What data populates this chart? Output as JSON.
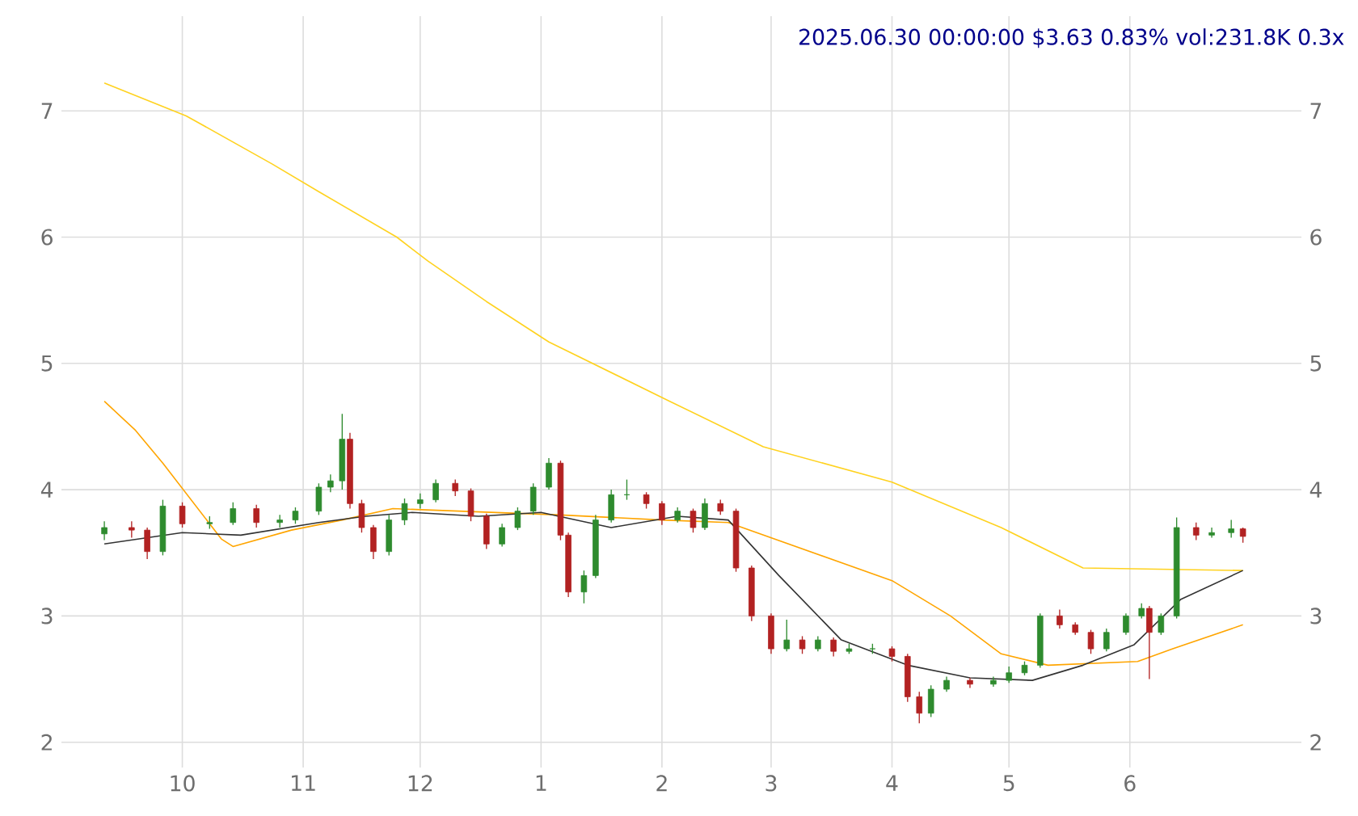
{
  "chart_data": {
    "type": "candlestick",
    "title": "2025.06.30 00:00:00 $3.63 0.83% vol:231.8K 0.3x",
    "x": [
      "2024-09-11",
      "2024-09-18",
      "2024-09-22",
      "2024-09-26",
      "2024-10-01",
      "2024-10-08",
      "2024-10-14",
      "2024-10-20",
      "2024-10-26",
      "2024-10-30",
      "2024-11-05",
      "2024-11-08",
      "2024-11-11",
      "2024-11-13",
      "2024-11-16",
      "2024-11-19",
      "2024-11-23",
      "2024-11-27",
      "2024-12-01",
      "2024-12-05",
      "2024-12-10",
      "2024-12-14",
      "2024-12-18",
      "2024-12-22",
      "2024-12-26",
      "2024-12-30",
      "2025-01-03",
      "2025-01-06",
      "2025-01-08",
      "2025-01-12",
      "2025-01-15",
      "2025-01-19",
      "2025-01-23",
      "2025-01-28",
      "2025-02-01",
      "2025-02-05",
      "2025-02-09",
      "2025-02-12",
      "2025-02-16",
      "2025-02-20",
      "2025-02-24",
      "2025-03-01",
      "2025-03-05",
      "2025-03-09",
      "2025-03-13",
      "2025-03-17",
      "2025-03-21",
      "2025-03-27",
      "2025-04-01",
      "2025-04-05",
      "2025-04-08",
      "2025-04-11",
      "2025-04-15",
      "2025-04-21",
      "2025-04-27",
      "2025-05-01",
      "2025-05-05",
      "2025-05-09",
      "2025-05-14",
      "2025-05-18",
      "2025-05-22",
      "2025-05-26",
      "2025-05-31",
      "2025-06-04",
      "2025-06-06",
      "2025-06-09",
      "2025-06-13",
      "2025-06-18",
      "2025-06-22",
      "2025-06-27",
      "2025-06-30"
    ],
    "ohlc": [
      [
        3.65,
        3.75,
        3.6,
        3.7
      ],
      [
        3.7,
        3.75,
        3.62,
        3.68
      ],
      [
        3.68,
        3.7,
        3.45,
        3.51
      ],
      [
        3.51,
        3.92,
        3.48,
        3.87
      ],
      [
        3.87,
        3.9,
        3.7,
        3.73
      ],
      [
        3.73,
        3.79,
        3.69,
        3.74
      ],
      [
        3.74,
        3.9,
        3.72,
        3.85
      ],
      [
        3.85,
        3.88,
        3.7,
        3.74
      ],
      [
        3.74,
        3.8,
        3.7,
        3.76
      ],
      [
        3.76,
        3.86,
        3.73,
        3.83
      ],
      [
        3.83,
        4.05,
        3.8,
        4.02
      ],
      [
        4.02,
        4.12,
        3.98,
        4.07
      ],
      [
        4.07,
        4.6,
        4.0,
        4.4
      ],
      [
        4.4,
        4.45,
        3.85,
        3.89
      ],
      [
        3.89,
        3.92,
        3.66,
        3.7
      ],
      [
        3.7,
        3.72,
        3.45,
        3.51
      ],
      [
        3.51,
        3.8,
        3.48,
        3.76
      ],
      [
        3.76,
        3.93,
        3.72,
        3.89
      ],
      [
        3.89,
        3.97,
        3.85,
        3.92
      ],
      [
        3.92,
        4.08,
        3.9,
        4.05
      ],
      [
        4.05,
        4.08,
        3.95,
        3.99
      ],
      [
        3.99,
        4.01,
        3.75,
        3.79
      ],
      [
        3.79,
        3.81,
        3.53,
        3.57
      ],
      [
        3.57,
        3.73,
        3.55,
        3.7
      ],
      [
        3.7,
        3.86,
        3.68,
        3.83
      ],
      [
        3.83,
        4.05,
        3.8,
        4.02
      ],
      [
        4.02,
        4.25,
        4.0,
        4.21
      ],
      [
        4.21,
        4.23,
        3.6,
        3.64
      ],
      [
        3.64,
        3.66,
        3.15,
        3.19
      ],
      [
        3.19,
        3.36,
        3.1,
        3.32
      ],
      [
        3.32,
        3.8,
        3.3,
        3.76
      ],
      [
        3.76,
        4.0,
        3.74,
        3.96
      ],
      [
        3.96,
        4.08,
        3.92,
        3.96
      ],
      [
        3.96,
        3.98,
        3.85,
        3.89
      ],
      [
        3.89,
        3.91,
        3.72,
        3.76
      ],
      [
        3.76,
        3.86,
        3.74,
        3.83
      ],
      [
        3.83,
        3.85,
        3.66,
        3.7
      ],
      [
        3.7,
        3.93,
        3.68,
        3.89
      ],
      [
        3.89,
        3.92,
        3.8,
        3.83
      ],
      [
        3.83,
        3.85,
        3.35,
        3.38
      ],
      [
        3.38,
        3.4,
        2.96,
        3.0
      ],
      [
        3.0,
        3.02,
        2.7,
        2.74
      ],
      [
        2.74,
        2.97,
        2.72,
        2.81
      ],
      [
        2.81,
        2.84,
        2.7,
        2.74
      ],
      [
        2.74,
        2.84,
        2.72,
        2.81
      ],
      [
        2.81,
        2.83,
        2.68,
        2.72
      ],
      [
        2.72,
        2.78,
        2.7,
        2.74
      ],
      [
        2.74,
        2.78,
        2.7,
        2.74
      ],
      [
        2.74,
        2.76,
        2.64,
        2.68
      ],
      [
        2.68,
        2.7,
        2.32,
        2.36
      ],
      [
        2.36,
        2.4,
        2.15,
        2.23
      ],
      [
        2.23,
        2.45,
        2.2,
        2.42
      ],
      [
        2.42,
        2.52,
        2.4,
        2.49
      ],
      [
        2.49,
        2.51,
        2.43,
        2.46
      ],
      [
        2.46,
        2.52,
        2.44,
        2.49
      ],
      [
        2.49,
        2.6,
        2.47,
        2.55
      ],
      [
        2.55,
        2.64,
        2.53,
        2.61
      ],
      [
        2.61,
        3.02,
        2.59,
        3.0
      ],
      [
        3.0,
        3.05,
        2.9,
        2.93
      ],
      [
        2.93,
        2.95,
        2.85,
        2.87
      ],
      [
        2.87,
        2.89,
        2.7,
        2.74
      ],
      [
        2.74,
        2.9,
        2.72,
        2.87
      ],
      [
        2.87,
        3.02,
        2.85,
        3.0
      ],
      [
        3.0,
        3.1,
        2.98,
        3.06
      ],
      [
        3.06,
        3.08,
        2.5,
        2.87
      ],
      [
        2.87,
        3.02,
        2.85,
        3.0
      ],
      [
        3.0,
        3.78,
        2.98,
        3.7
      ],
      [
        3.7,
        3.74,
        3.6,
        3.64
      ],
      [
        3.64,
        3.7,
        3.62,
        3.66
      ],
      [
        3.66,
        3.76,
        3.62,
        3.69
      ],
      [
        3.69,
        3.7,
        3.58,
        3.63
      ]
    ],
    "series": [
      {
        "type": "line",
        "color": "#ffd21f",
        "x": [
          "2024-09-11",
          "2024-10-02",
          "2024-10-24",
          "2024-11-05",
          "2024-11-25",
          "2024-12-03",
          "2024-12-18",
          "2025-01-03",
          "2025-02-03",
          "2025-02-27",
          "2025-04-01",
          "2025-04-29",
          "2025-05-20",
          "2025-06-30"
        ],
        "values": [
          7.22,
          6.96,
          6.58,
          6.36,
          6.0,
          5.81,
          5.49,
          5.17,
          4.7,
          4.34,
          4.06,
          3.7,
          3.38,
          3.36
        ]
      },
      {
        "type": "line",
        "color": "#ffa500",
        "x": [
          "2024-09-11",
          "2024-09-19",
          "2024-09-26",
          "2024-10-11",
          "2024-10-14",
          "2024-10-29",
          "2024-11-11",
          "2024-11-24",
          "2025-01-06",
          "2025-02-01",
          "2025-02-18",
          "2025-03-11",
          "2025-04-01",
          "2025-04-16",
          "2025-04-29",
          "2025-05-11",
          "2025-06-03",
          "2025-06-12",
          "2025-06-30"
        ],
        "values": [
          4.7,
          4.47,
          4.21,
          3.61,
          3.55,
          3.68,
          3.76,
          3.85,
          3.8,
          3.76,
          3.74,
          3.51,
          3.28,
          3.0,
          2.7,
          2.61,
          2.64,
          2.74,
          2.93
        ]
      },
      {
        "type": "line",
        "color": "#333333",
        "x": [
          "2024-09-11",
          "2024-10-01",
          "2024-10-16",
          "2024-11-05",
          "2024-11-17",
          "2024-11-29",
          "2024-12-16",
          "2025-01-01",
          "2025-01-19",
          "2025-02-05",
          "2025-02-18",
          "2025-03-03",
          "2025-03-19",
          "2025-04-05",
          "2025-04-21",
          "2025-05-07",
          "2025-05-20",
          "2025-06-02",
          "2025-06-14",
          "2025-06-30"
        ],
        "values": [
          3.57,
          3.66,
          3.64,
          3.74,
          3.79,
          3.82,
          3.79,
          3.82,
          3.7,
          3.79,
          3.76,
          3.32,
          2.81,
          2.61,
          2.51,
          2.49,
          2.61,
          2.77,
          3.13,
          3.36
        ]
      }
    ],
    "xlim": [
      "2024-08-31",
      "2025-07-15"
    ],
    "xticks": [
      {
        "value": "2024-10-01",
        "label": "10"
      },
      {
        "value": "2024-11-01",
        "label": "11"
      },
      {
        "value": "2024-12-01",
        "label": "12"
      },
      {
        "value": "2025-01-01",
        "label": "1"
      },
      {
        "value": "2025-02-01",
        "label": "2"
      },
      {
        "value": "2025-03-01",
        "label": "3"
      },
      {
        "value": "2025-04-01",
        "label": "4"
      },
      {
        "value": "2025-05-01",
        "label": "5"
      },
      {
        "value": "2025-06-01",
        "label": "6"
      }
    ],
    "ylim": [
      1.8,
      7.75
    ],
    "yticks": [
      2,
      3,
      4,
      5,
      6,
      7
    ],
    "y2lim": [
      1.8,
      7.75
    ],
    "y2ticks": [
      2,
      3,
      4,
      5,
      6,
      7
    ],
    "grid": true
  }
}
